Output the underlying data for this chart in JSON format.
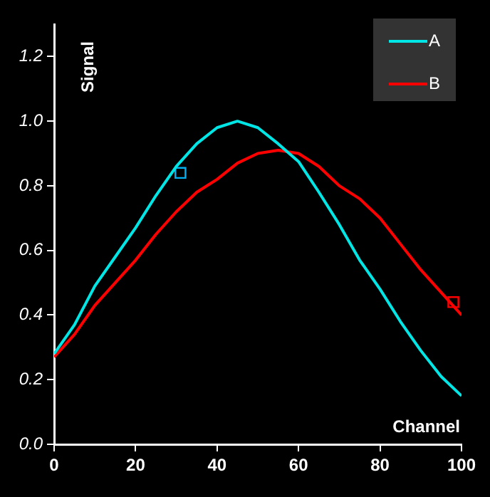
{
  "chart_data": {
    "type": "line",
    "xlabel": "Channel",
    "ylabel": "Signal",
    "xlim": [
      0,
      100
    ],
    "xticks": [
      0,
      20,
      40,
      60,
      80,
      100
    ],
    "ylim": [
      0,
      1.3
    ],
    "yticks": [
      {
        "value": 0,
        "label": "0.0"
      },
      {
        "value": 0.2,
        "label": "0.2"
      },
      {
        "value": 0.4,
        "label": "0.4"
      },
      {
        "value": 0.6,
        "label": "0.6"
      },
      {
        "value": 0.8,
        "label": "0.8"
      },
      {
        "value": 1,
        "label": "1.0"
      },
      {
        "value": 1.2,
        "label": "1.2"
      }
    ],
    "grid": false,
    "legend": "top right",
    "marker": "none",
    "line_style": "solid",
    "x": [
      0,
      5,
      10,
      15,
      20,
      25,
      30,
      35,
      40,
      45,
      50,
      55,
      60,
      65,
      70,
      75,
      80,
      85,
      90,
      95,
      100
    ],
    "series": [
      {
        "name": "A",
        "color": "#00e5e5",
        "values": [
          0.28,
          0.37,
          0.49,
          0.58,
          0.67,
          0.77,
          0.86,
          0.93,
          0.98,
          1.0,
          0.98,
          0.93,
          0.875,
          0.78,
          0.68,
          0.57,
          0.48,
          0.38,
          0.29,
          0.21,
          0.15
        ]
      },
      {
        "name": "B",
        "color": "#ff0000",
        "values": [
          0.27,
          0.34,
          0.43,
          0.5,
          0.57,
          0.65,
          0.72,
          0.78,
          0.82,
          0.87,
          0.9,
          0.91,
          0.9,
          0.86,
          0.8,
          0.76,
          0.7,
          0.62,
          0.54,
          0.47,
          0.4
        ]
      },
      {
        "type": "scatter",
        "marker": "square",
        "color": "#00b0f0",
        "x": [
          31
        ],
        "values": [
          0.84
        ]
      },
      {
        "type": "scatter",
        "marker": "square",
        "color": "#ff0000",
        "x": [
          98
        ],
        "values": [
          0.44
        ]
      }
    ]
  }
}
